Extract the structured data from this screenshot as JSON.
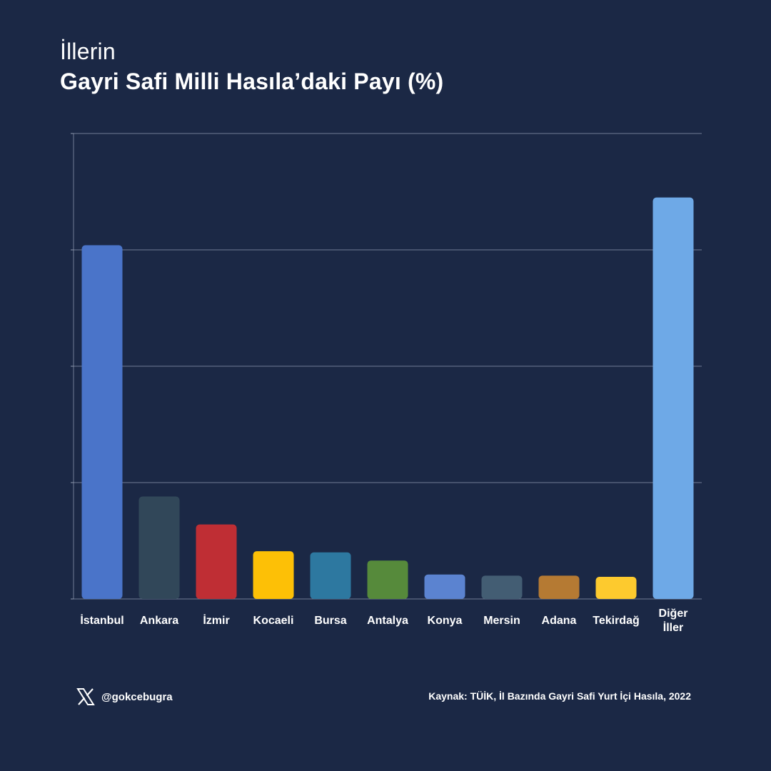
{
  "header": {
    "title_line1": "İllerin",
    "title_line2": "Gayri Safi Milli Hasıla’daki Payı (%)"
  },
  "chart_data": {
    "type": "bar",
    "title": "İllerin Gayri Safi Milli Hasıla’daki Payı (%)",
    "xlabel": "",
    "ylabel": "",
    "ylim": [
      0,
      40
    ],
    "grid": true,
    "categories": [
      "İstanbul",
      "Ankara",
      "İzmir",
      "Kocaeli",
      "Bursa",
      "Antalya",
      "Konya",
      "Mersin",
      "Adana",
      "Tekirdağ",
      "Diğer İller"
    ],
    "category_lines": [
      [
        "İstanbul"
      ],
      [
        "Ankara"
      ],
      [
        "İzmir"
      ],
      [
        "Kocaeli"
      ],
      [
        "Bursa"
      ],
      [
        "Antalya"
      ],
      [
        "Konya"
      ],
      [
        "Mersin"
      ],
      [
        "Adana"
      ],
      [
        "Tekirdağ"
      ],
      [
        "Diğer",
        "İller"
      ]
    ],
    "values": [
      30.4,
      8.8,
      6.4,
      4.1,
      4.0,
      3.3,
      2.1,
      2.0,
      2.0,
      1.9,
      34.5
    ],
    "colors": [
      "#4a74c9",
      "#314759",
      "#bf2e34",
      "#fdc006",
      "#2d78a0",
      "#568a3b",
      "#5b83d0",
      "#435d73",
      "#b57a33",
      "#fdca2e",
      "#6ea9e7"
    ]
  },
  "footer": {
    "icon": "x-logo-icon",
    "handle": "@gokcebugra",
    "source": "Kaynak: TÜİK, İl Bazında Gayri Safi Yurt İçi Hasıla, 2022"
  }
}
